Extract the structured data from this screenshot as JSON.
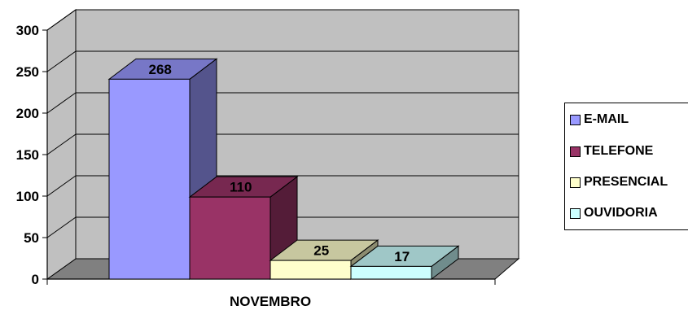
{
  "chart_data": {
    "type": "bar",
    "categories": [
      "NOVEMBRO"
    ],
    "series": [
      {
        "name": "E-MAIL",
        "values": [
          268
        ],
        "color": "#9999ff"
      },
      {
        "name": "TELEFONE",
        "values": [
          110
        ],
        "color": "#993366"
      },
      {
        "name": "PRESENCIAL",
        "values": [
          25
        ],
        "color": "#ffffcc"
      },
      {
        "name": "OUVIDORIA",
        "values": [
          17
        ],
        "color": "#ccffff"
      }
    ],
    "yticks": [
      "0",
      "50",
      "100",
      "150",
      "200",
      "250",
      "300"
    ],
    "ylim": [
      0,
      300
    ],
    "title": "",
    "xlabel": "",
    "ylabel": "",
    "grid": true,
    "legend_position": "right",
    "three_d": true,
    "wall_color": "#c0c0c0",
    "floor_color": "#808080"
  }
}
